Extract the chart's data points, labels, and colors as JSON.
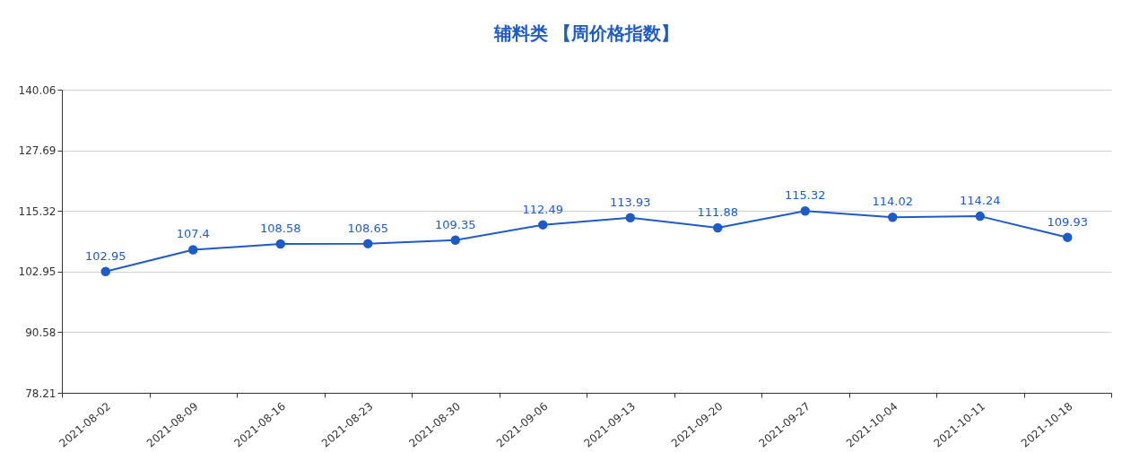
{
  "chart_data": {
    "type": "line",
    "title": "辅料类 【周价格指数】",
    "categories": [
      "2021-08-02",
      "2021-08-09",
      "2021-08-16",
      "2021-08-23",
      "2021-08-30",
      "2021-09-06",
      "2021-09-13",
      "2021-09-20",
      "2021-09-27",
      "2021-10-04",
      "2021-10-11",
      "2021-10-18"
    ],
    "series": [
      {
        "color": "#1f5bc6",
        "values": [
          102.95,
          107.4,
          108.58,
          108.65,
          109.35,
          112.49,
          113.93,
          111.88,
          115.32,
          114.02,
          114.24,
          109.93
        ]
      }
    ],
    "ylim": [
      78.21,
      140.06
    ],
    "yticks": [
      78.21,
      90.58,
      102.95,
      115.32,
      127.69,
      140.06
    ],
    "grid": "y",
    "marker": "circle",
    "line_style": "solid",
    "data_labels": true,
    "legend": false
  }
}
